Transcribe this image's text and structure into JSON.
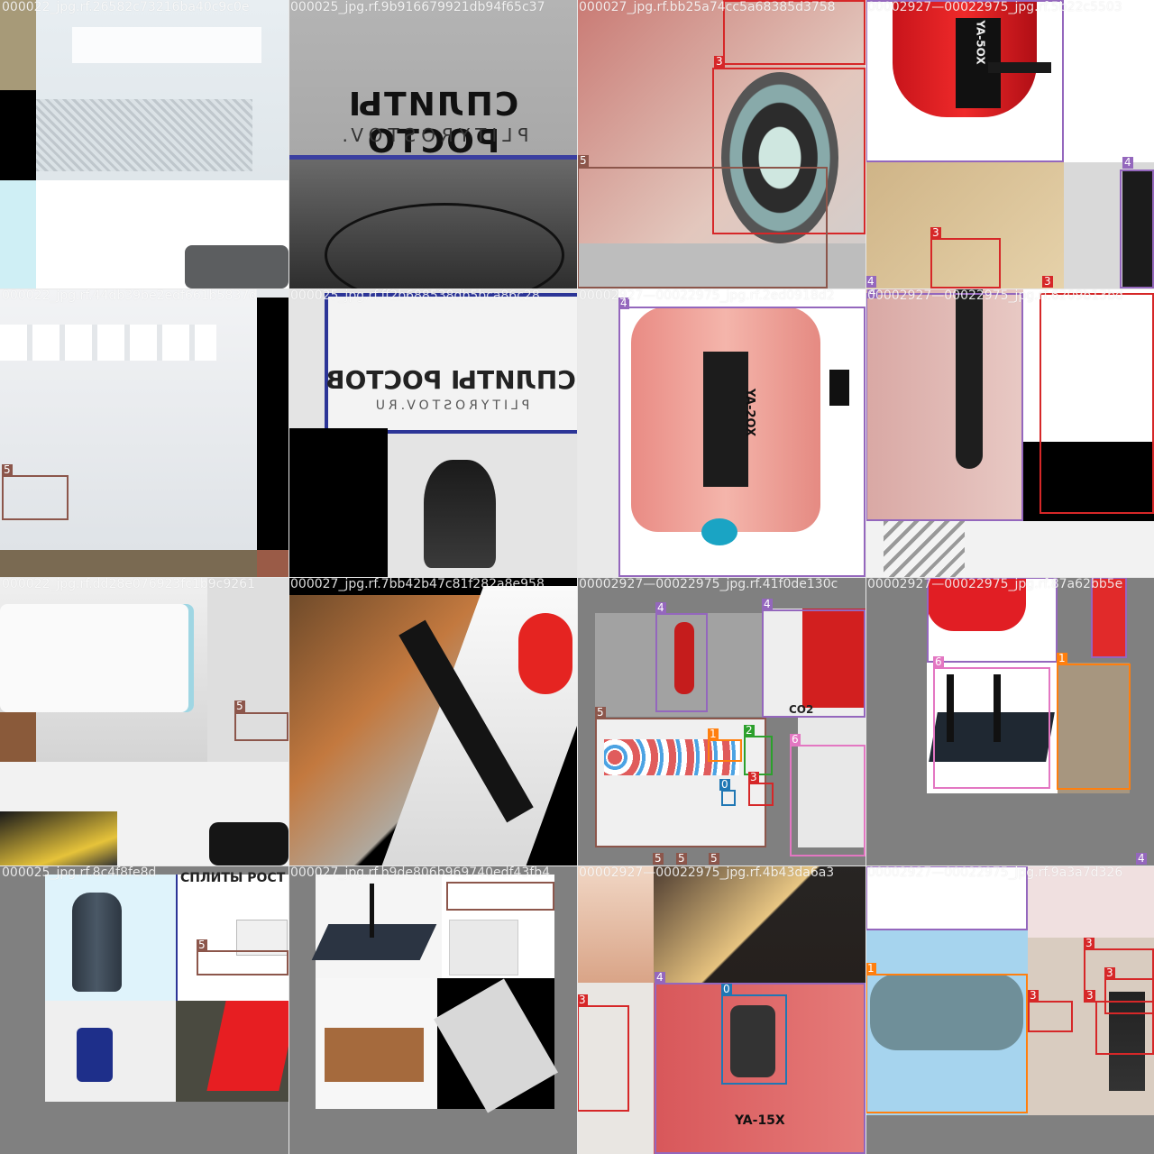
{
  "class_colors": {
    "0": "#1f77b4",
    "1": "#ff7f0e",
    "2": "#2ca02c",
    "3": "#d62728",
    "4": "#9467bd",
    "5": "#8c564b",
    "6": "#e377c2"
  },
  "tiles": [
    {
      "id": "t0",
      "filename": "000022_jpg.rf.26582c73216ba40c9c0e",
      "boxes": []
    },
    {
      "id": "t1",
      "filename": "000025_jpg.rf.9b916679921db94f65c37",
      "boxes": []
    },
    {
      "id": "t2",
      "filename": "000027_jpg.rf.bb25a74cc5a68385d3758",
      "boxes": [
        {
          "label": "3"
        },
        {
          "label": "5"
        }
      ]
    },
    {
      "id": "t3",
      "filename": "00002927—00022975_jpg.rf.5b22c5503",
      "boxes": [
        {
          "label": "4"
        },
        {
          "label": "3"
        },
        {
          "label": "3"
        },
        {
          "label": "4"
        }
      ]
    },
    {
      "id": "t4",
      "filename": "000022_jpg.rf.44db39be2edf661b5837d",
      "boxes": [
        {
          "label": "5"
        }
      ]
    },
    {
      "id": "t5",
      "filename": "000025_jpg.rf.ff2b688538db5bca86c28",
      "boxes": []
    },
    {
      "id": "t6",
      "filename": "00002927—00022975_jpg.rf.2ed0918d2",
      "boxes": [
        {
          "label": "4"
        }
      ]
    },
    {
      "id": "t7",
      "filename": "00002927—00022975_jpg.rf.6209b13bd",
      "boxes": [
        {
          "label": "4"
        }
      ]
    },
    {
      "id": "t8",
      "filename": "000022_jpg.rf.dd28e076923fc1b9c9261",
      "boxes": [
        {
          "label": "5"
        }
      ]
    },
    {
      "id": "t9",
      "filename": "000027_jpg.rf.7bb42b47c81f282a8e958",
      "boxes": []
    },
    {
      "id": "t10",
      "filename": "00002927—00022975_jpg.rf.41f0de130c",
      "boxes": [
        {
          "label": "4"
        },
        {
          "label": "4"
        },
        {
          "label": "5"
        },
        {
          "label": "1"
        },
        {
          "label": "2"
        },
        {
          "label": "3"
        },
        {
          "label": "0"
        },
        {
          "label": "6"
        },
        {
          "label": "5"
        },
        {
          "label": "5"
        },
        {
          "label": "5"
        }
      ]
    },
    {
      "id": "t11",
      "filename": "00002927—00022975_jpg.rf.87a62bb5e",
      "boxes": [
        {
          "label": "4"
        },
        {
          "label": "4"
        },
        {
          "label": "6"
        },
        {
          "label": "1"
        },
        {
          "label": "4"
        }
      ]
    },
    {
      "id": "t12",
      "filename": "000025_jpg.rf.8c4f8fe8d",
      "boxes": [
        {
          "label": "5"
        }
      ]
    },
    {
      "id": "t13",
      "filename": "000027_jpg.rf.b9de806b969740edf43fb4",
      "boxes": []
    },
    {
      "id": "t14",
      "filename": "00002927—00022975_jpg.rf.4b43da6a3",
      "boxes": [
        {
          "label": "4"
        },
        {
          "label": "0"
        },
        {
          "label": "3"
        }
      ]
    },
    {
      "id": "t15",
      "filename": "00002927—00022975_jpg.rf.9a3a7d326",
      "boxes": [
        {
          "label": "1"
        },
        {
          "label": "3"
        },
        {
          "label": "3"
        },
        {
          "label": "3"
        },
        {
          "label": "3"
        }
      ]
    }
  ],
  "signage": {
    "sign_main": "СПЛИТЫ РОСТО",
    "sign_url": "PLITYROSTOV.",
    "sign_main_2": "СПЛИТЫ РОСТОВ",
    "sign_url_2": "PLITYROSTOV.RU",
    "sign_small": "СПЛИТЫ РОСТ",
    "ext_text_1": "YA-5OX",
    "ext_text_2": "YA-2OX",
    "ext_text_3": "YA-15X",
    "co2": "CO2"
  }
}
